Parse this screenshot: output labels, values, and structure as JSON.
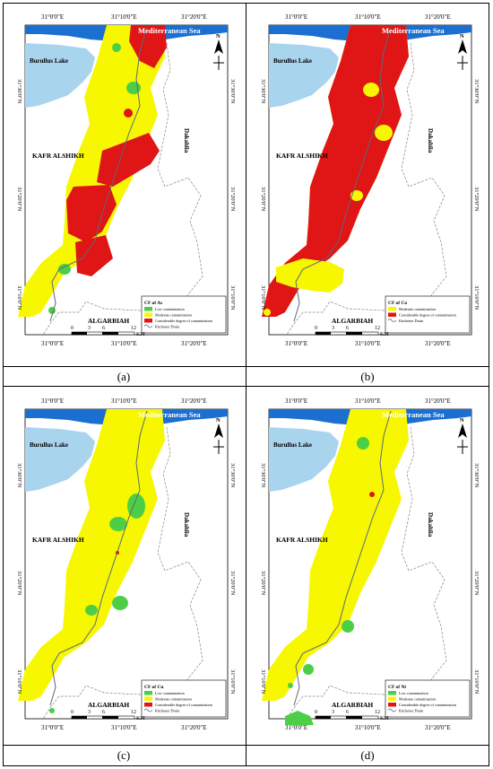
{
  "common": {
    "sea_label": "Mediterranean Sea",
    "lake_label": "Burullus Lake",
    "left_region": "KAFR ALSHIKH",
    "right_region": "Dakahlia",
    "bottom_region": "ALGARBIAH",
    "top_coords": [
      "31°0'0\"E",
      "31°10'0\"E",
      "31°20'0\"E"
    ],
    "bottom_coords": [
      "31°0'0\"E",
      "31°10'0\"E",
      "31°20'0\"E"
    ],
    "left_coords": [
      "31°30'0\"N",
      "31°20'0\"N",
      "31°10'0\"N"
    ],
    "right_coords": [
      "31°30'0\"N",
      "31°20'0\"N",
      "31°10'0\"N"
    ],
    "scale_ticks": [
      "0",
      "3",
      "6",
      "12"
    ],
    "scale_unit": "KM",
    "north_symbol": "N",
    "legend_drain": "Kitchener Drain",
    "legend_low": "Low contamination",
    "legend_moderate": "Moderate contamination",
    "legend_considerable": "Considerable degree of contamination"
  },
  "colors": {
    "sea": "#1a6fd0",
    "lake": "#a9d4ee",
    "low": "#4ccf46",
    "moderate": "#f7f700",
    "considerable": "#e01515",
    "drain": "#5a6a7a"
  },
  "panels": [
    {
      "caption": "(a)",
      "legend_title": "CF of As",
      "legend_items": [
        "low",
        "moderate",
        "considerable"
      ]
    },
    {
      "caption": "(b)",
      "legend_title": "CF of Co",
      "legend_items": [
        "moderate",
        "considerable"
      ]
    },
    {
      "caption": "(c)",
      "legend_title": "CF of Cu",
      "legend_items": [
        "low",
        "moderate",
        "considerable"
      ]
    },
    {
      "caption": "(d)",
      "legend_title": "CF of Ni",
      "legend_items": [
        "low",
        "moderate",
        "considerable"
      ]
    }
  ]
}
